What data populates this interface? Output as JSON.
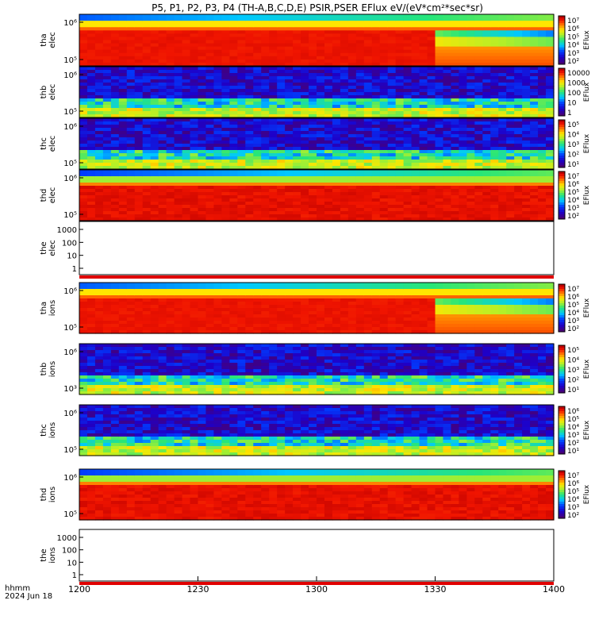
{
  "title": "P5, P1, P2, P3, P4 (TH-A,B,C,D,E) PSIR,PSER EFlux eV/(eV*cm²*sec*sr)",
  "chart_data": {
    "type": "heatmap",
    "x_ticks": [
      "1200",
      "1230",
      "1300",
      "1330",
      "1400"
    ],
    "x_labels": [
      "hhmm",
      "2024 Jun 18"
    ],
    "panels": [
      {
        "id": "tha-elec",
        "ylabel": [
          "tha",
          "elec"
        ],
        "pattern": "tha",
        "yticks": [
          "10⁵",
          "10⁶"
        ],
        "colorbar": {
          "label": "EFlux",
          "ticks": [
            "10⁷",
            "10⁶",
            "10⁵",
            "10⁴",
            "10³",
            "10²"
          ]
        }
      },
      {
        "id": "thb-elec",
        "ylabel": [
          "thb",
          "elec"
        ],
        "pattern": "noise",
        "yticks": [
          "10⁵",
          "10⁶"
        ],
        "colorbar": {
          "label": "EFlux",
          "ticks": [
            "10000",
            "1000",
            "100",
            "10",
            "1"
          ]
        }
      },
      {
        "id": "thc-elec",
        "ylabel": [
          "thc",
          "elec"
        ],
        "pattern": "noise",
        "yticks": [
          "10⁵",
          "10⁶"
        ],
        "colorbar": {
          "label": "EFlux",
          "ticks": [
            "10⁵",
            "10⁴",
            "10³",
            "10²",
            "10¹"
          ]
        }
      },
      {
        "id": "thd-elec",
        "ylabel": [
          "thd",
          "elec"
        ],
        "pattern": "thd",
        "yticks": [
          "10⁵",
          "10⁶"
        ],
        "colorbar": {
          "label": "EFlux",
          "ticks": [
            "10⁷",
            "10⁶",
            "10⁵",
            "10⁴",
            "10³",
            "10²"
          ]
        }
      },
      {
        "id": "the-elec",
        "ylabel": [
          "the",
          "elec"
        ],
        "pattern": "empty",
        "yticks": [
          "1",
          "10",
          "100",
          "1000"
        ],
        "colorbar": null
      },
      {
        "id": "tha-ions",
        "ylabel": [
          "tha",
          "ions"
        ],
        "pattern": "tha",
        "yticks": [
          "10⁵",
          "10⁶"
        ],
        "colorbar": {
          "label": "EFlux",
          "ticks": [
            "10⁷",
            "10⁶",
            "10⁵",
            "10⁴",
            "10³",
            "10²"
          ]
        }
      },
      {
        "id": "thb-ions",
        "ylabel": [
          "thb",
          "ions"
        ],
        "pattern": "noise",
        "yticks": [
          "10³",
          "10⁶"
        ],
        "colorbar": {
          "label": "EFlux",
          "ticks": [
            "10⁵",
            "10⁴",
            "10³",
            "10²",
            "10¹"
          ]
        }
      },
      {
        "id": "thc-ions",
        "ylabel": [
          "thc",
          "ions"
        ],
        "pattern": "noise",
        "yticks": [
          "10⁵",
          "10⁶"
        ],
        "colorbar": {
          "label": "EFlux",
          "ticks": [
            "10⁶",
            "10⁵",
            "10⁴",
            "10³",
            "10²",
            "10¹"
          ]
        }
      },
      {
        "id": "thd-ions",
        "ylabel": [
          "thd",
          "ions"
        ],
        "pattern": "thd",
        "yticks": [
          "10⁵",
          "10⁶"
        ],
        "colorbar": {
          "label": "EFlux",
          "ticks": [
            "10⁷",
            "10⁶",
            "10⁵",
            "10⁴",
            "10³",
            "10²"
          ]
        }
      },
      {
        "id": "the-ions",
        "ylabel": [
          "the",
          "ions"
        ],
        "pattern": "empty",
        "yticks": [
          "1",
          "10",
          "100",
          "1000"
        ],
        "colorbar": null
      }
    ]
  }
}
